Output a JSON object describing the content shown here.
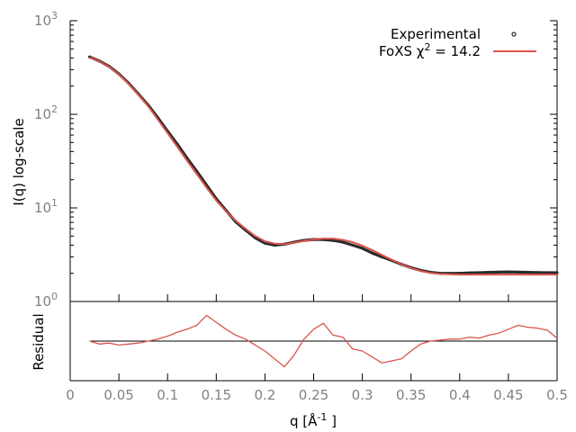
{
  "chart_data": [
    {
      "type": "scatter",
      "panel": "main",
      "ylabel": "I(q) log-scale",
      "yscale": "log",
      "ylim": [
        1,
        1000
      ],
      "xlim": [
        0,
        0.5
      ],
      "y_tick_labels": [
        {
          "base": "10",
          "exp": "0"
        },
        {
          "base": "10",
          "exp": "1"
        },
        {
          "base": "10",
          "exp": "2"
        },
        {
          "base": "10",
          "exp": "3"
        }
      ],
      "legend": {
        "placement": "top-right",
        "experimental_label": "Experimental",
        "fit_label_main": "FoXS χ",
        "fit_label_sup": "2",
        "fit_label_tail": " = 14.2"
      },
      "colors": {
        "experimental": "#2a2a2a",
        "fit": "#d9544d"
      },
      "series": [
        {
          "name": "Experimental",
          "style": "points",
          "x": [
            0.02,
            0.03,
            0.04,
            0.05,
            0.06,
            0.07,
            0.08,
            0.09,
            0.1,
            0.11,
            0.12,
            0.13,
            0.14,
            0.15,
            0.16,
            0.17,
            0.18,
            0.19,
            0.2,
            0.21,
            0.22,
            0.23,
            0.24,
            0.25,
            0.26,
            0.27,
            0.28,
            0.29,
            0.3,
            0.31,
            0.32,
            0.33,
            0.34,
            0.35,
            0.36,
            0.37,
            0.38,
            0.39,
            0.4,
            0.41,
            0.42,
            0.43,
            0.44,
            0.45,
            0.46,
            0.47,
            0.48,
            0.49,
            0.5
          ],
          "y": [
            410,
            370,
            325,
            270,
            215,
            165,
            125,
            92,
            66,
            48,
            34,
            24.5,
            17.5,
            12.5,
            9.4,
            7.1,
            5.8,
            4.8,
            4.2,
            4.0,
            4.1,
            4.3,
            4.5,
            4.6,
            4.6,
            4.5,
            4.3,
            4.0,
            3.7,
            3.3,
            3.0,
            2.75,
            2.5,
            2.3,
            2.15,
            2.05,
            2.0,
            2.0,
            2.0,
            2.02,
            2.03,
            2.05,
            2.06,
            2.07,
            2.06,
            2.05,
            2.04,
            2.03,
            2.03
          ]
        },
        {
          "name": "FoXS χ2 = 14.2",
          "style": "line",
          "x": [
            0.02,
            0.03,
            0.04,
            0.05,
            0.06,
            0.07,
            0.08,
            0.09,
            0.1,
            0.11,
            0.12,
            0.13,
            0.14,
            0.15,
            0.16,
            0.17,
            0.18,
            0.19,
            0.2,
            0.21,
            0.22,
            0.23,
            0.24,
            0.25,
            0.26,
            0.27,
            0.28,
            0.29,
            0.3,
            0.31,
            0.32,
            0.33,
            0.34,
            0.35,
            0.36,
            0.37,
            0.38,
            0.39,
            0.4,
            0.41,
            0.42,
            0.43,
            0.44,
            0.45,
            0.46,
            0.47,
            0.48,
            0.49,
            0.5
          ],
          "y": [
            405,
            368,
            322,
            268,
            212,
            162,
            122,
            88,
            63,
            45,
            32,
            23,
            16.5,
            12,
            9.2,
            7.3,
            6.0,
            5.0,
            4.4,
            4.15,
            4.1,
            4.25,
            4.45,
            4.6,
            4.7,
            4.7,
            4.55,
            4.3,
            3.95,
            3.55,
            3.15,
            2.8,
            2.5,
            2.28,
            2.12,
            2.02,
            1.97,
            1.95,
            1.94,
            1.94,
            1.94,
            1.94,
            1.94,
            1.94,
            1.94,
            1.94,
            1.94,
            1.94,
            1.94
          ]
        }
      ]
    },
    {
      "type": "line",
      "panel": "residual",
      "ylabel": "Residual",
      "xlabel_main": "q [Å",
      "xlabel_sup": "-1",
      "xlabel_tail": " ]",
      "xlim": [
        0,
        0.5
      ],
      "ylim": [
        -4,
        4
      ],
      "x_tick_labels": [
        "0",
        "0.05",
        "0.1",
        "0.15",
        "0.2",
        "0.25",
        "0.3",
        "0.35",
        "0.4",
        "0.45",
        "0.5"
      ],
      "zero_line": 0,
      "colors": {
        "residual": "#d9544d",
        "zero": "#000000"
      },
      "series": [
        {
          "name": "Residual",
          "x": [
            0.02,
            0.03,
            0.04,
            0.05,
            0.06,
            0.07,
            0.08,
            0.09,
            0.1,
            0.11,
            0.12,
            0.13,
            0.14,
            0.15,
            0.16,
            0.17,
            0.18,
            0.19,
            0.2,
            0.21,
            0.22,
            0.23,
            0.24,
            0.25,
            0.26,
            0.27,
            0.28,
            0.29,
            0.3,
            0.31,
            0.32,
            0.33,
            0.34,
            0.35,
            0.36,
            0.37,
            0.38,
            0.39,
            0.4,
            0.41,
            0.42,
            0.43,
            0.44,
            0.45,
            0.46,
            0.47,
            0.48,
            0.49,
            0.5
          ],
          "y": [
            0.0,
            -0.3,
            -0.2,
            -0.4,
            -0.3,
            -0.2,
            0.0,
            0.2,
            0.5,
            0.9,
            1.2,
            1.6,
            2.6,
            1.9,
            1.2,
            0.6,
            0.2,
            -0.4,
            -1.0,
            -1.8,
            -2.6,
            -1.4,
            0.2,
            1.2,
            1.8,
            0.6,
            0.4,
            -0.8,
            -1.0,
            -1.6,
            -2.2,
            -2.0,
            -1.8,
            -1.0,
            -0.3,
            0.0,
            0.1,
            0.2,
            0.2,
            0.4,
            0.3,
            0.6,
            0.8,
            1.2,
            1.6,
            1.4,
            1.3,
            1.1,
            0.3
          ]
        }
      ]
    }
  ]
}
